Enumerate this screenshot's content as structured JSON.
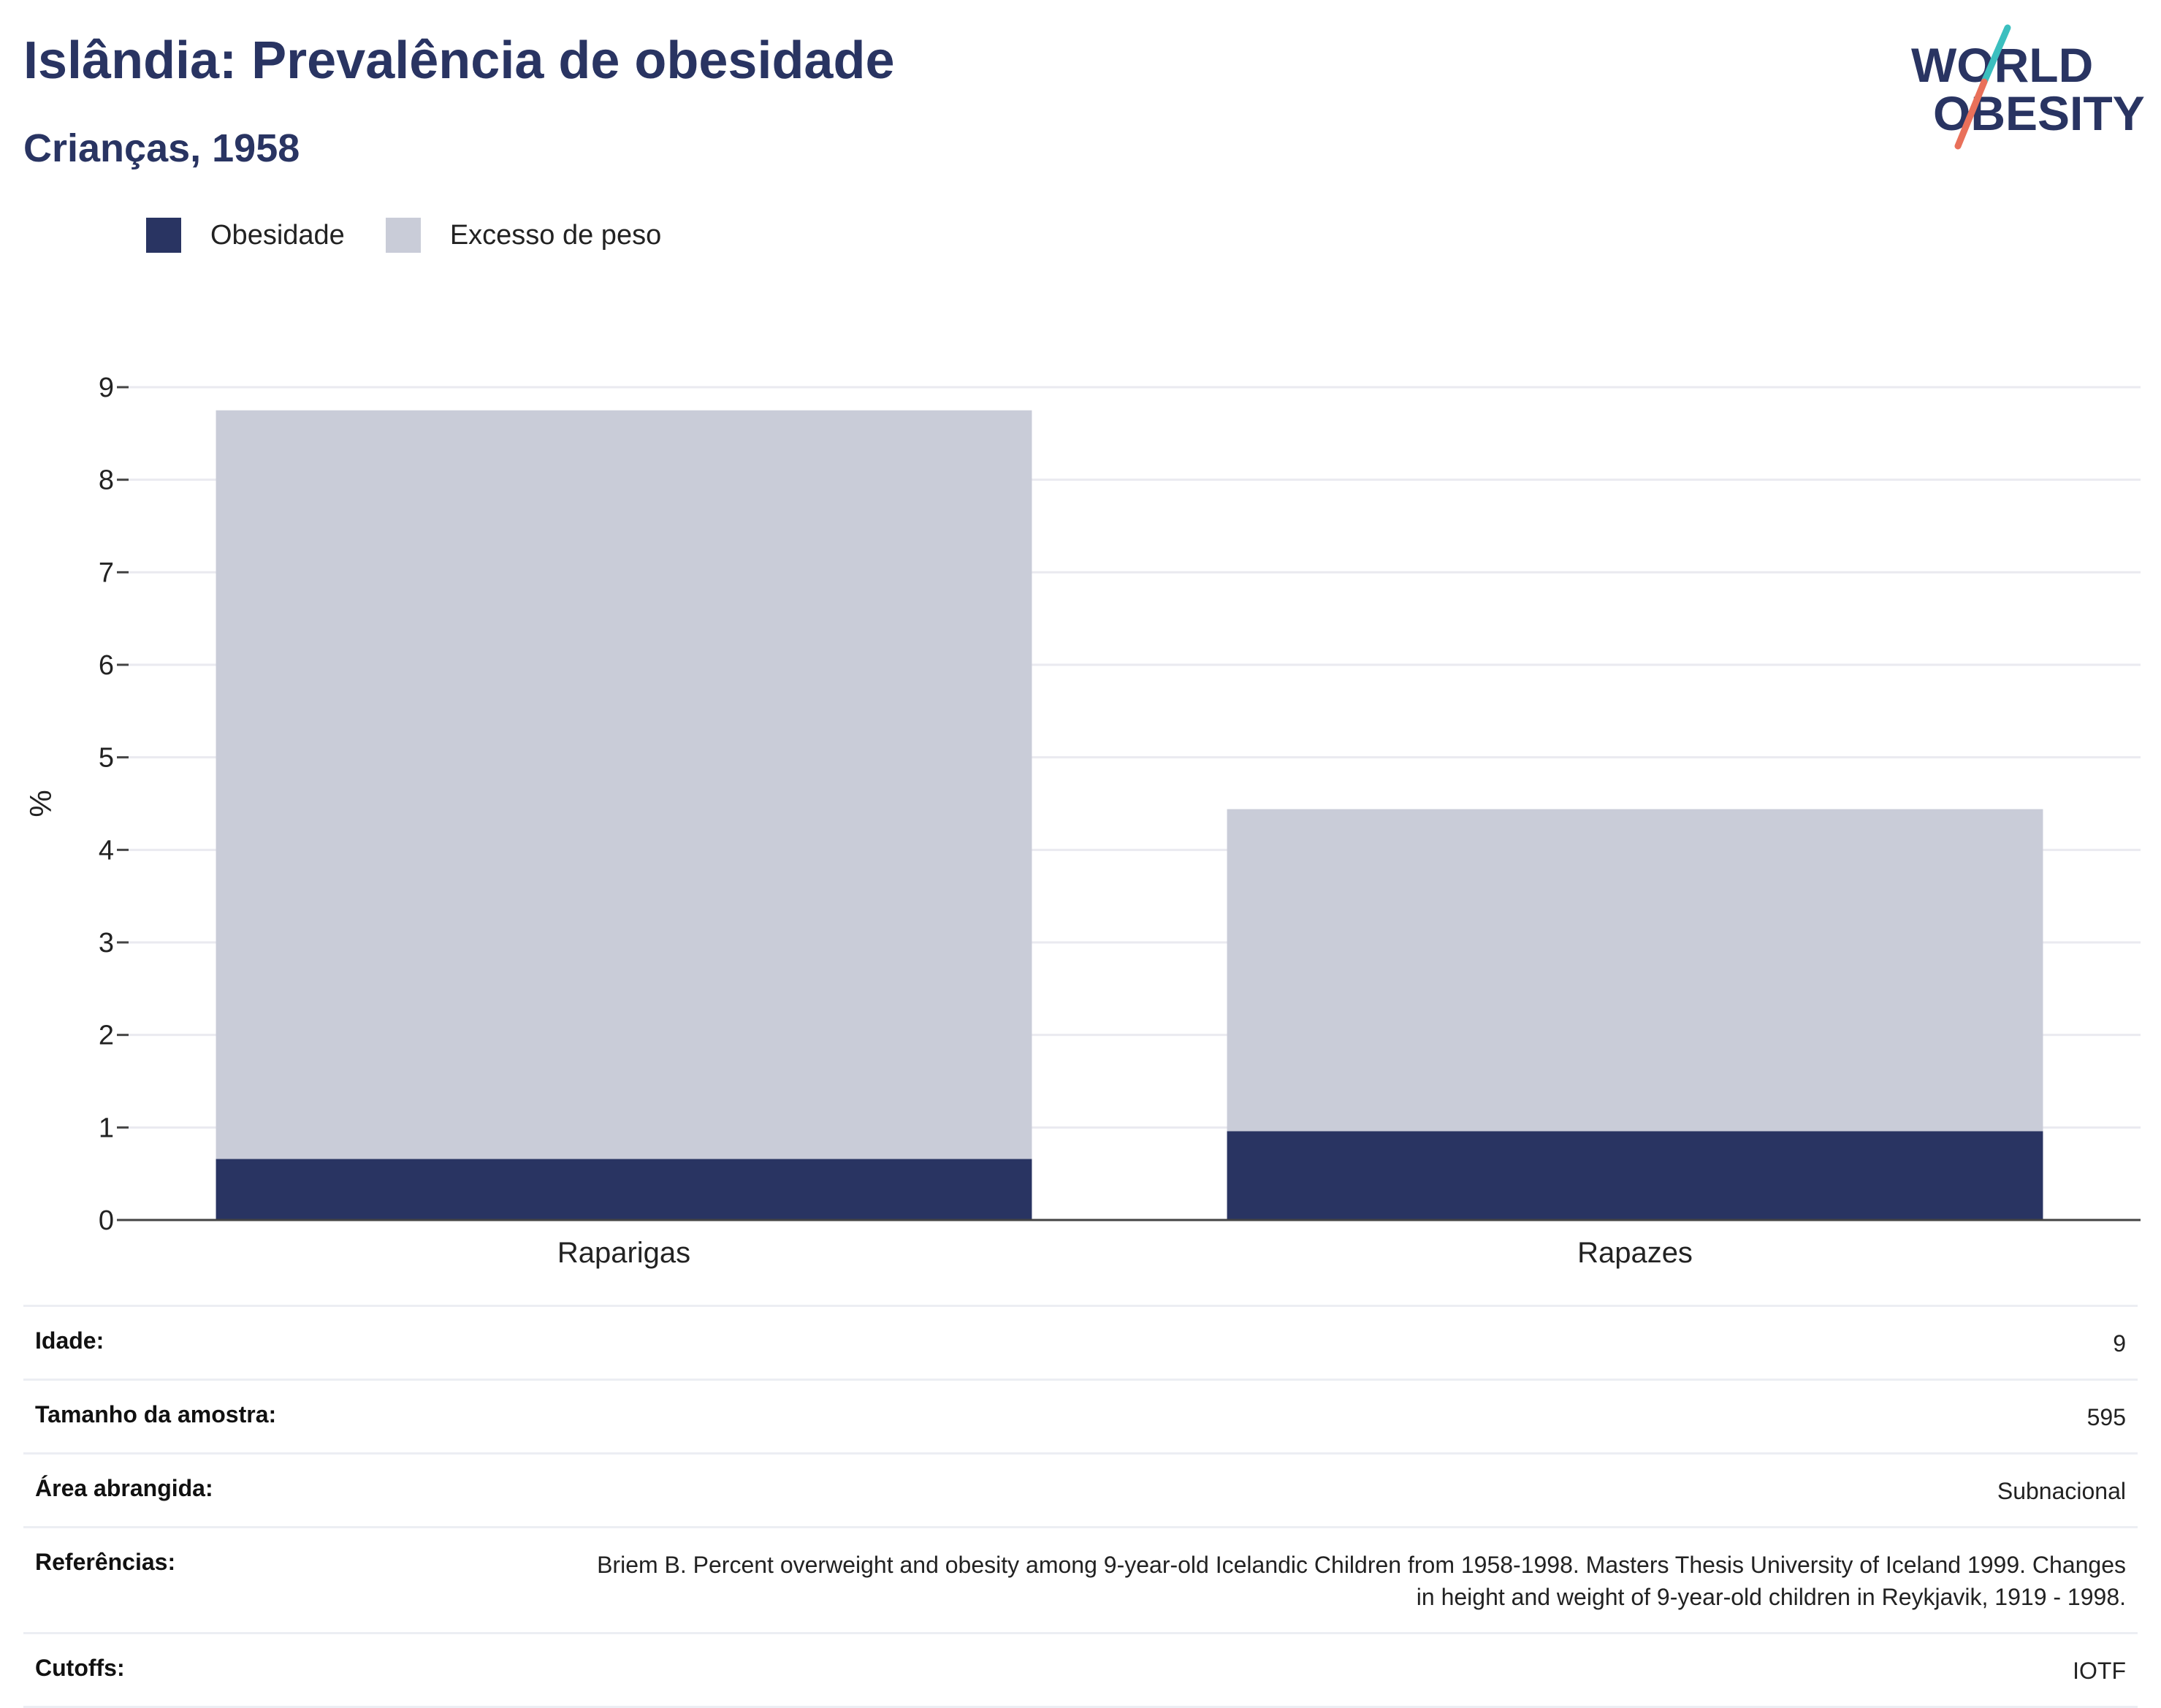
{
  "header": {
    "title": "Islândia: Prevalência de obesidade",
    "subtitle": "Crianças, 1958"
  },
  "logo": {
    "line1": "WORLD",
    "line2": "OBESITY",
    "colors": {
      "text": "#293462",
      "slash_top": "#3bbfbf",
      "slash_bottom": "#e9705a"
    }
  },
  "legend": {
    "items": [
      {
        "label": "Obesidade",
        "color": "#293462"
      },
      {
        "label": "Excesso de peso",
        "color": "#c9ccd8"
      }
    ]
  },
  "chart_data": {
    "type": "bar",
    "stacked": true,
    "categories": [
      "Raparigas",
      "Rapazes"
    ],
    "series": [
      {
        "name": "Obesidade",
        "color": "#293462",
        "values": [
          0.66,
          0.96
        ]
      },
      {
        "name": "Excesso de peso",
        "color": "#c9ccd8",
        "values": [
          8.09,
          3.48
        ]
      }
    ],
    "ylabel": "%",
    "ylim": [
      0,
      9
    ],
    "yticks": [
      0,
      1,
      2,
      3,
      4,
      5,
      6,
      7,
      8,
      9
    ],
    "grid": true,
    "legend_position": "top-left"
  },
  "info": {
    "rows": [
      {
        "label": "Idade:",
        "value": "9"
      },
      {
        "label": "Tamanho da amostra:",
        "value": "595"
      },
      {
        "label": "Área abrangida:",
        "value": "Subnacional"
      },
      {
        "label": "Referências:",
        "value": "Briem B. Percent overweight and obesity among 9-year-old Icelandic Children from 1958-1998. Masters Thesis University of Iceland 1999. Changes in height and weight of 9-year-old children in Reykjavik, 1919 - 1998."
      },
      {
        "label": "Cutoffs:",
        "value": "IOTF"
      }
    ]
  }
}
